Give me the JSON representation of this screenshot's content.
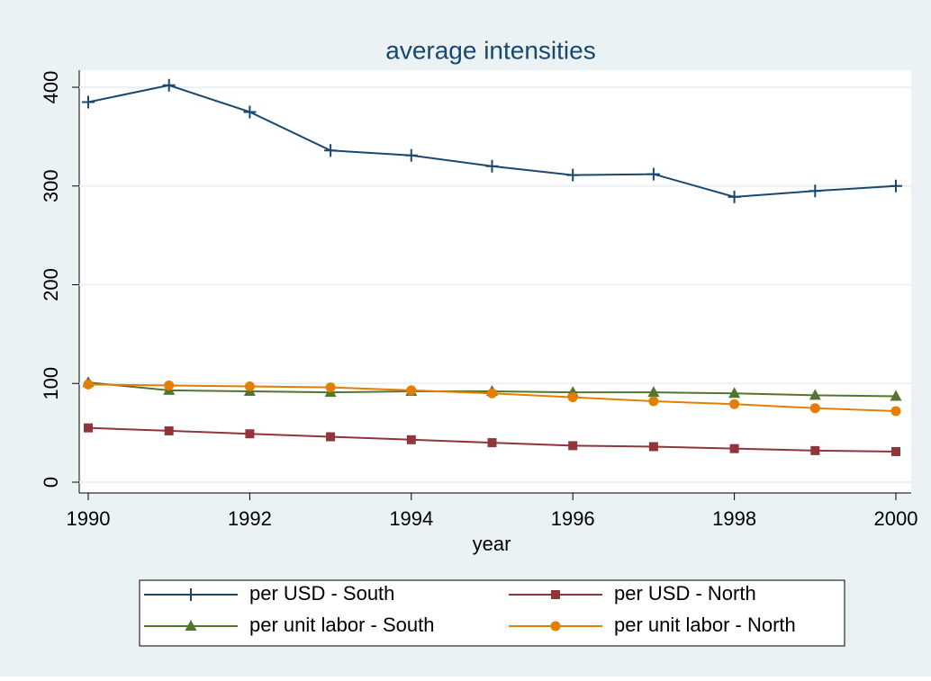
{
  "chart_data": {
    "type": "line",
    "title": "average intensities",
    "x_label": "year",
    "x": [
      1990,
      1991,
      1992,
      1993,
      1994,
      1995,
      1996,
      1997,
      1998,
      1999,
      2000
    ],
    "xlim": [
      1990,
      2000
    ],
    "xticks": [
      1990,
      1992,
      1994,
      1996,
      1998,
      2000
    ],
    "ylim": [
      0,
      400
    ],
    "yticks": [
      0,
      100,
      200,
      300,
      400
    ],
    "grid": true,
    "legend": "bottom",
    "series": [
      {
        "name": "per USD - South",
        "color": "#1a476f",
        "marker": "plus",
        "values": [
          385,
          402,
          375,
          336,
          331,
          320,
          311,
          312,
          289,
          295,
          300
        ]
      },
      {
        "name": "per USD - North",
        "color": "#90353b",
        "marker": "square",
        "values": [
          55,
          52,
          49,
          46,
          43,
          40,
          37,
          36,
          34,
          32,
          31
        ]
      },
      {
        "name": "per unit labor - South",
        "color": "#55752f",
        "marker": "triangle",
        "values": [
          101,
          93,
          92,
          91,
          92,
          92,
          91,
          91,
          90,
          88,
          87
        ]
      },
      {
        "name": "per unit labor - North",
        "color": "#e37e00",
        "marker": "circle",
        "values": [
          99,
          98,
          97,
          96,
          93,
          90,
          86,
          82,
          79,
          75,
          72
        ]
      }
    ]
  }
}
